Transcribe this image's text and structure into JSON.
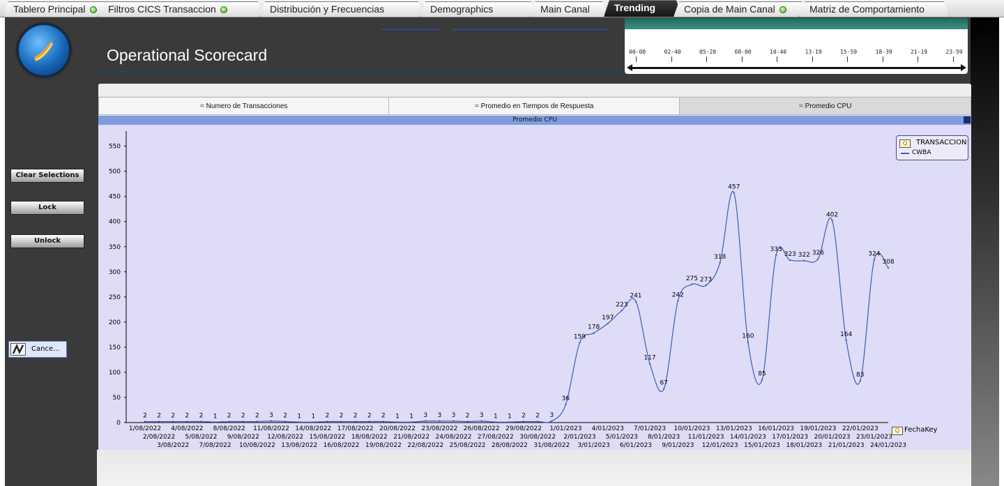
{
  "tabs": [
    {
      "label": "Tablero Principal",
      "status": true
    },
    {
      "label": "Filtros CICS Transaccion",
      "status": true
    },
    {
      "label": "Distribución y Frecuencias",
      "status": false
    },
    {
      "label": "Demographics",
      "status": false
    },
    {
      "label": "Main Canal",
      "status": false
    },
    {
      "label": "Trending",
      "status": false,
      "active": true
    },
    {
      "label": "Copia de Main Canal",
      "status": true
    },
    {
      "label": "Matriz de Comportamiento",
      "status": false
    }
  ],
  "header": {
    "title": "Operational Scorecard"
  },
  "time_slider": {
    "labels": [
      "00-00",
      "02-40",
      "05-20",
      "08-00",
      "10-40",
      "13-19",
      "15-59",
      "18-39",
      "21-19",
      "23-59"
    ]
  },
  "sidebar": {
    "clear_label": "Clear Selections",
    "lock_label": "Lock",
    "unlock_label": "Unlock",
    "cancel_label": "Cance..."
  },
  "chart_tabs": [
    {
      "label": "Numero de Transacciones",
      "active": false
    },
    {
      "label": "Promedio en Tiempos de Respuesta",
      "active": false
    },
    {
      "label": "Promedio CPU",
      "active": true
    }
  ],
  "chart_header": "Promedio CPU",
  "legend": {
    "title": "TRANSACCION",
    "item": "CWBA"
  },
  "colors": {
    "line": "#3a5fb5",
    "plot_bg": "#dedcf6",
    "header_bar": "#7f9cdf",
    "active_tab": "#151515"
  },
  "chart_data": {
    "type": "line",
    "title": "Promedio CPU",
    "xlabel": "FechaKey",
    "ylabel": "",
    "ylim": [
      0,
      580
    ],
    "yticks": [
      0,
      50,
      100,
      150,
      200,
      250,
      300,
      350,
      400,
      450,
      500,
      550
    ],
    "grid": false,
    "legend_position": "top-right",
    "x": [
      "1/08/2022",
      "2/08/2022",
      "3/08/2022",
      "4/08/2022",
      "5/08/2022",
      "7/08/2022",
      "8/08/2022",
      "9/08/2022",
      "10/08/2022",
      "11/08/2022",
      "12/08/2022",
      "13/08/2022",
      "14/08/2022",
      "15/08/2022",
      "16/08/2022",
      "17/08/2022",
      "18/08/2022",
      "19/08/2022",
      "20/08/2022",
      "21/08/2022",
      "22/08/2022",
      "23/08/2022",
      "24/08/2022",
      "25/08/2022",
      "26/08/2022",
      "27/08/2022",
      "28/08/2022",
      "29/08/2022",
      "30/08/2022",
      "31/08/2022",
      "1/01/2023",
      "2/01/2023",
      "3/01/2023",
      "4/01/2023",
      "5/01/2023",
      "6/01/2023",
      "7/01/2023",
      "8/01/2023",
      "9/01/2023",
      "10/01/2023",
      "11/01/2023",
      "12/01/2023",
      "13/01/2023",
      "14/01/2023",
      "15/01/2023",
      "16/01/2023",
      "17/01/2023",
      "18/01/2023",
      "19/01/2023",
      "20/01/2023",
      "21/01/2023",
      "22/01/2023",
      "23/01/2023",
      "24/01/2023"
    ],
    "series": [
      {
        "name": "CWBA",
        "values": [
          2,
          2,
          2,
          2,
          2,
          1,
          2,
          2,
          2,
          3,
          2,
          1,
          1,
          2,
          2,
          2,
          2,
          2,
          1,
          1,
          3,
          3,
          3,
          2,
          3,
          1,
          1,
          2,
          2,
          3,
          36,
          159,
          178,
          197,
          223,
          241,
          117,
          67,
          242,
          275,
          273,
          318,
          457,
          160,
          85,
          333,
          323,
          322,
          326,
          402,
          164,
          83,
          324,
          308
        ]
      }
    ]
  }
}
